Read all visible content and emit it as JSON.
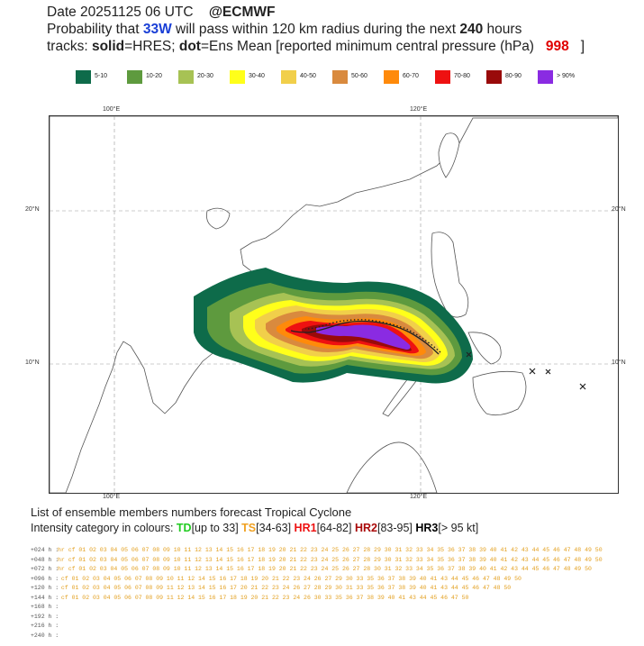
{
  "header": {
    "line1_prefix": "Date 20251125 06 UTC",
    "line1_source": "@ECMWF",
    "line2_a": "Probability that ",
    "storm_id": "33W",
    "line2_b": " will pass within 120 km radius during the next ",
    "hours": "240",
    "line2_c": " hours",
    "line3_a": "tracks: ",
    "solid": "solid",
    "line3_b": "=HRES; ",
    "dot": "dot",
    "line3_c": "=Ens Mean [reported minimum central pressure (hPa) ",
    "pressure": "998",
    "line3_d": " ]"
  },
  "legend": [
    {
      "label": "5-10",
      "color": "#0e6b4a"
    },
    {
      "label": "10-20",
      "color": "#5e9a3e"
    },
    {
      "label": "20-30",
      "color": "#a7c254"
    },
    {
      "label": "30-40",
      "color": "#ffff1a"
    },
    {
      "label": "40-50",
      "color": "#f1cf4a"
    },
    {
      "label": "50-60",
      "color": "#d98a3e"
    },
    {
      "label": "60-70",
      "color": "#ff8a0a"
    },
    {
      "label": "70-80",
      "color": "#ee1111"
    },
    {
      "label": "80-90",
      "color": "#990a0a"
    },
    {
      "label": "> 90%",
      "color": "#8a2be2"
    }
  ],
  "axes": {
    "lon_left": "100°E",
    "lon_right": "120°E",
    "lat_top": "20°N",
    "lat_bottom": "10°N"
  },
  "footer": {
    "line1": "List of ensemble members numbers forecast Tropical Cyclone",
    "line2_a": "Intensity category in colours: ",
    "td": "TD",
    "td_range": "[up to 33] ",
    "ts": "TS",
    "ts_range": "[34-63] ",
    "hr1": "HR1",
    "hr1_range": "[64-82] ",
    "hr2": "HR2",
    "hr2_range": "[83-95] ",
    "hr3": "HR3",
    "hr3_range": "[> 95 kt]"
  },
  "ensemble_rows": [
    {
      "lead": "+024 h :",
      "text": "hr cf 01 02 03 04 05 06 07 08 09 10 11 12 13 14 15 16 17 18 19 20 21 22 23 24 25 26 27 28 29 30 31 32 33 34 35 36 37 38 39 40 41 42 43 44 45 46 47 48 49 50"
    },
    {
      "lead": "+048 h :",
      "text": "hr cf 01 02 03 04 05 06 07 08 09 10 11 12 13 14 15 16 17 18 19 20 21 22 23 24 25 26 27 28 29 30 31 32 33 34 35 36 37 38 39 40 41 42 43 44 45 46 47 48 49 50"
    },
    {
      "lead": "+072 h :",
      "text": "hr cf 01 02 03 04 05 06 07 08 09 10 11 12 13 14 15 16 17 18 19 20 21 22 23 24 25 26 27    28 30 31 32 33 34 35 36 37 38 39 40 41 42 43 44 45 46 47 48 49 50"
    },
    {
      "lead": "+096 h :",
      "text": "   cf 01 02 03 04 05 06 07 08 09 10 11 12    14 15 16 17 18 19 20 21 22 23 24    26 27    29 30    33    35 36 37 38 39 40 41    43 44 45 46 47 48 49 50"
    },
    {
      "lead": "+120 h :",
      "text": "   cf 01 02 03 04 05 06 07 08 09    11 12 13 14 15 16 17    20 21 22 23 24    26 27 28 29 30 31    33    35 36 37 38 39 40 41    43 44 45 46 47 48    50"
    },
    {
      "lead": "+144 h :",
      "text": "   cf 01 02 03 04 05 06 07 08 09    11 12    14 15 16 17 18 19 20 21 22 23 24    26       30    33    35 36 37 38 39 40 41    43 44 45 46 47       50"
    },
    {
      "lead": "+168 h :",
      "text": ""
    },
    {
      "lead": "+192 h :",
      "text": ""
    },
    {
      "lead": "+216 h :",
      "text": ""
    },
    {
      "lead": "+240 h :",
      "text": ""
    }
  ],
  "icons": {
    "ensemble_end_marker": "x-mark-icon"
  }
}
